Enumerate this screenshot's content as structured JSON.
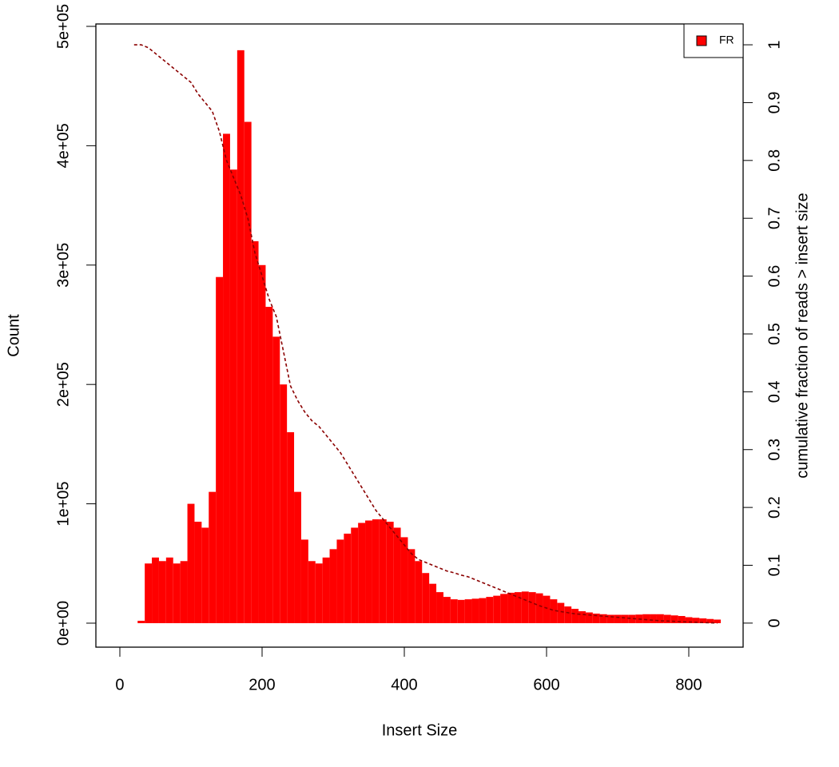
{
  "chart_data": {
    "type": "bar",
    "xlabel": "Insert Size",
    "ylabel": "Count",
    "y2label": "cumulative fraction of reads > insert size",
    "x": [
      20,
      30,
      40,
      50,
      60,
      70,
      80,
      90,
      100,
      110,
      120,
      130,
      140,
      150,
      160,
      170,
      180,
      190,
      200,
      210,
      220,
      230,
      240,
      250,
      260,
      270,
      280,
      290,
      300,
      310,
      320,
      330,
      340,
      350,
      360,
      370,
      380,
      390,
      400,
      410,
      420,
      430,
      440,
      450,
      460,
      470,
      480,
      490,
      500,
      510,
      520,
      530,
      540,
      550,
      560,
      570,
      580,
      590,
      600,
      610,
      620,
      630,
      640,
      650,
      660,
      670,
      680,
      690,
      700,
      710,
      720,
      730,
      740,
      750,
      760,
      770,
      780,
      790,
      800,
      810,
      820,
      830,
      840
    ],
    "series": [
      {
        "name": "FR",
        "color": "#ff0000",
        "values": [
          0,
          2000,
          50000,
          55000,
          52000,
          55000,
          50000,
          52000,
          100000,
          85000,
          80000,
          110000,
          290000,
          410000,
          380000,
          480000,
          420000,
          320000,
          300000,
          265000,
          240000,
          200000,
          160000,
          110000,
          70000,
          52000,
          50000,
          55000,
          62000,
          70000,
          75000,
          80000,
          84000,
          86000,
          87000,
          87000,
          85000,
          80000,
          72000,
          62000,
          52000,
          42000,
          33000,
          26000,
          22000,
          20000,
          19500,
          20000,
          20500,
          21000,
          22000,
          23000,
          24500,
          25500,
          26000,
          26500,
          26000,
          25000,
          23000,
          20000,
          17000,
          14000,
          12000,
          10000,
          9000,
          8000,
          7500,
          7000,
          7000,
          7000,
          7000,
          7200,
          7500,
          7500,
          7500,
          7000,
          6500,
          6000,
          5000,
          4500,
          4000,
          3500,
          3000
        ]
      },
      {
        "color": "#8b0000",
        "axis": "y2",
        "values": [
          1,
          1,
          0.995,
          0.985,
          0.975,
          0.965,
          0.955,
          0.945,
          0.935,
          0.915,
          0.9,
          0.885,
          0.85,
          0.8,
          0.77,
          0.74,
          0.7,
          0.64,
          0.6,
          0.56,
          0.53,
          0.47,
          0.41,
          0.385,
          0.365,
          0.35,
          0.34,
          0.325,
          0.31,
          0.295,
          0.275,
          0.255,
          0.235,
          0.215,
          0.195,
          0.18,
          0.165,
          0.15,
          0.135,
          0.12,
          0.11,
          0.105,
          0.1,
          0.095,
          0.09,
          0.087,
          0.083,
          0.08,
          0.075,
          0.07,
          0.065,
          0.06,
          0.055,
          0.05,
          0.045,
          0.04,
          0.035,
          0.03,
          0.026,
          0.022,
          0.02,
          0.018,
          0.016,
          0.015,
          0.014,
          0.013,
          0.012,
          0.011,
          0.01,
          0.009,
          0.008,
          0.007,
          0.006,
          0.005,
          0.004,
          0.0035,
          0.003,
          0.0025,
          0.002,
          0.0015,
          0.001,
          0.0005,
          0
        ]
      }
    ],
    "xlim": [
      -33.7,
      876.4
    ],
    "xticks": [
      0,
      200,
      400,
      600,
      800
    ],
    "ylim": [
      -20100,
      502000
    ],
    "yticks": [
      {
        "value": 0,
        "label": "0e+00"
      },
      {
        "value": 100000,
        "label": "1e+05"
      },
      {
        "value": 200000,
        "label": "2e+05"
      },
      {
        "value": 300000,
        "label": "3e+05"
      },
      {
        "value": 400000,
        "label": "4e+05"
      },
      {
        "value": 500000,
        "label": "5e+05"
      }
    ],
    "y2lim": [
      -0.0416,
      1.036
    ],
    "y2ticks": [
      0,
      0.1,
      0.2,
      0.3,
      0.4,
      0.5,
      0.6,
      0.7,
      0.8,
      0.9,
      1
    ],
    "legend": "top-right"
  }
}
